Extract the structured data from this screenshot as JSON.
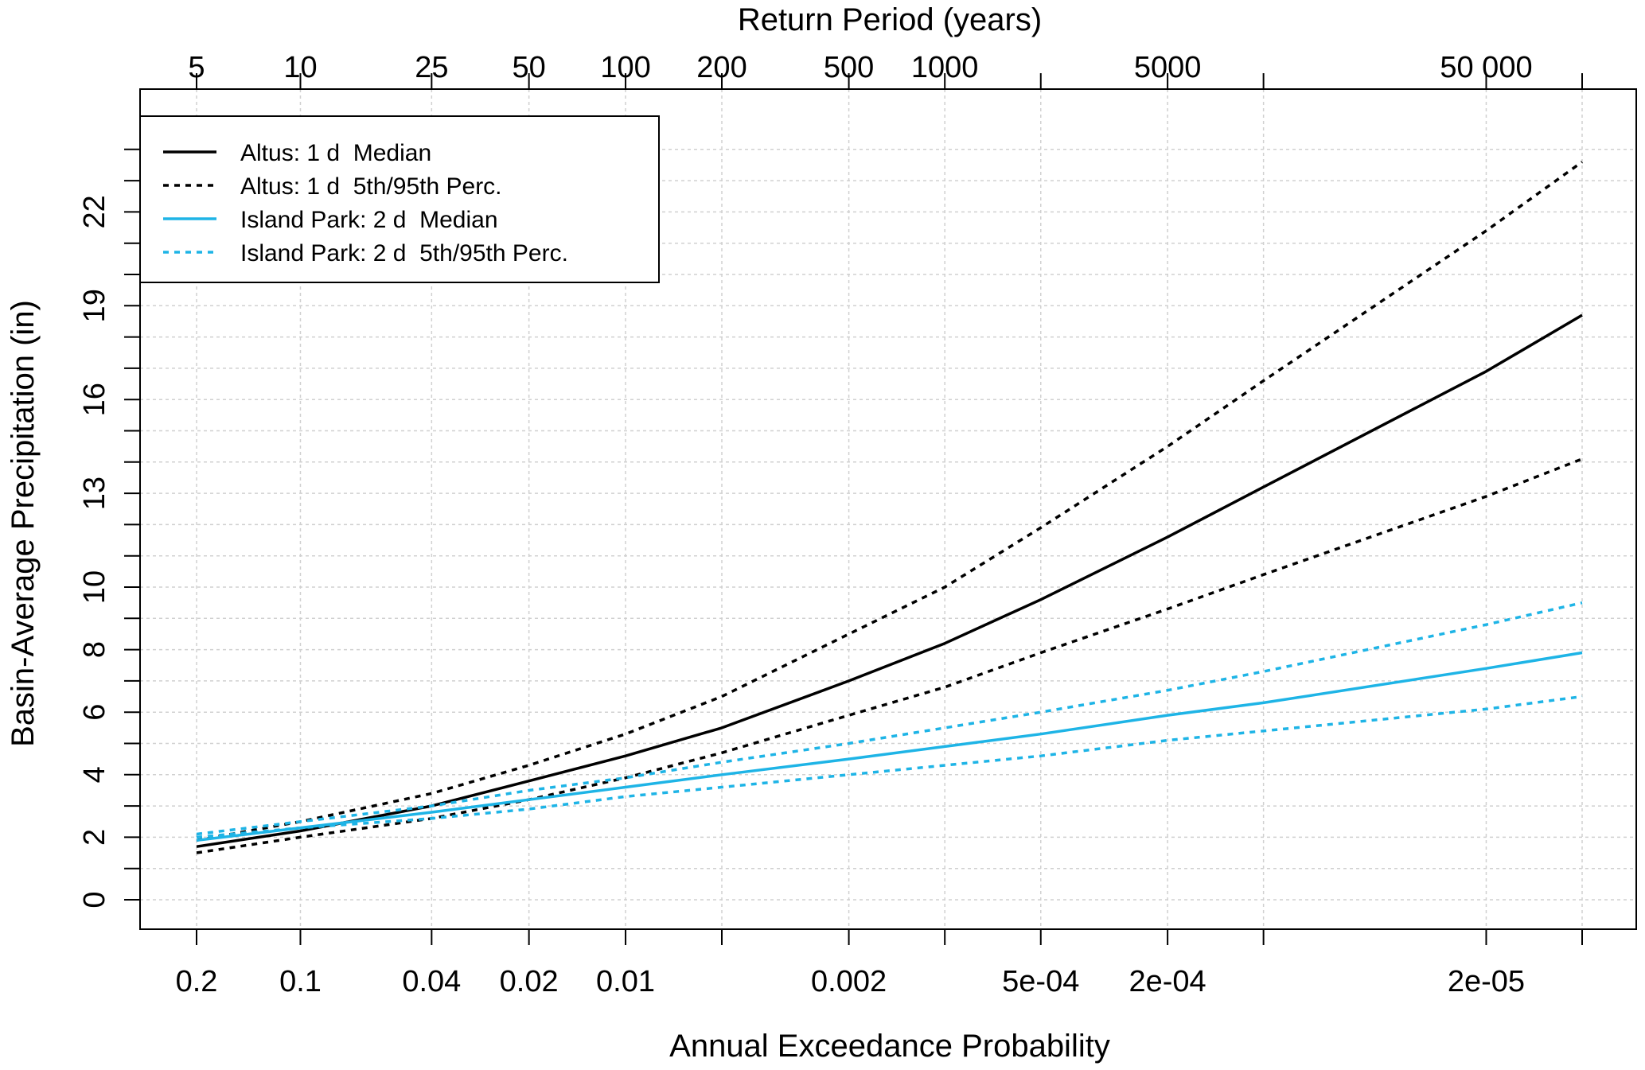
{
  "chart_data": {
    "type": "line",
    "xlabel": "Annual Exceedance Probability",
    "ylabel": "Basin-Average Precipitation (in)",
    "top_axis_label": "Return Period (years)",
    "x_scale": "gumbel-reduced-variate",
    "xlim_aep": [
      0.2,
      1e-05
    ],
    "ylim": [
      -1,
      25
    ],
    "grid": true,
    "legend_position": "top-left",
    "bottom_ticks": [
      {
        "aep": 0.2,
        "label": "0.2"
      },
      {
        "aep": 0.1,
        "label": "0.1"
      },
      {
        "aep": 0.04,
        "label": "0.04"
      },
      {
        "aep": 0.02,
        "label": "0.02"
      },
      {
        "aep": 0.01,
        "label": "0.01"
      },
      {
        "aep": 0.005,
        "label": ""
      },
      {
        "aep": 0.002,
        "label": "0.002"
      },
      {
        "aep": 0.001,
        "label": ""
      },
      {
        "aep": 0.0005,
        "label": "5e-04"
      },
      {
        "aep": 0.0002,
        "label": "2e-04"
      },
      {
        "aep": 0.0001,
        "label": ""
      },
      {
        "aep": 2e-05,
        "label": "2e-05"
      },
      {
        "aep": 1e-05,
        "label": ""
      }
    ],
    "top_ticks": [
      {
        "aep": 0.2,
        "label": "5"
      },
      {
        "aep": 0.1,
        "label": "10"
      },
      {
        "aep": 0.04,
        "label": "25"
      },
      {
        "aep": 0.02,
        "label": "50"
      },
      {
        "aep": 0.01,
        "label": "100"
      },
      {
        "aep": 0.005,
        "label": "200"
      },
      {
        "aep": 0.002,
        "label": "500"
      },
      {
        "aep": 0.001,
        "label": "1000"
      },
      {
        "aep": 0.0005,
        "label": ""
      },
      {
        "aep": 0.0002,
        "label": "5000"
      },
      {
        "aep": 0.0001,
        "label": ""
      },
      {
        "aep": 2e-05,
        "label": "50 000"
      },
      {
        "aep": 1e-05,
        "label": ""
      }
    ],
    "y_ticks": [
      {
        "value": 0,
        "label": "0"
      },
      {
        "value": 2,
        "label": "2"
      },
      {
        "value": 4,
        "label": "4"
      },
      {
        "value": 6,
        "label": "6"
      },
      {
        "value": 8,
        "label": "8"
      },
      {
        "value": 10,
        "label": "10"
      },
      {
        "value": 13,
        "label": "13"
      },
      {
        "value": 16,
        "label": "16"
      },
      {
        "value": 19,
        "label": "19"
      },
      {
        "value": 22,
        "label": "22"
      }
    ],
    "y_minor_ticks": [
      1,
      3,
      5,
      7,
      9,
      11,
      12,
      14,
      15,
      17,
      18,
      20,
      21,
      23,
      24
    ],
    "x": [
      0.2,
      0.1,
      0.04,
      0.02,
      0.01,
      0.005,
      0.002,
      0.001,
      0.0005,
      0.0002,
      0.0001,
      2e-05,
      1e-05
    ],
    "series": [
      {
        "name": "Altus: 1 d  Median",
        "color": "#000000",
        "dash": "solid",
        "values": [
          1.7,
          2.2,
          3.0,
          3.8,
          4.6,
          5.5,
          7.0,
          8.2,
          9.6,
          11.6,
          13.2,
          16.9,
          18.7
        ]
      },
      {
        "name": "Altus: 1 d  5th/95th Perc.",
        "color": "#000000",
        "dash": "dotted",
        "values": [
          1.9,
          2.5,
          3.4,
          4.3,
          5.3,
          6.5,
          8.5,
          10.0,
          11.9,
          14.5,
          16.6,
          21.4,
          23.6
        ]
      },
      {
        "name": "",
        "color": "#000000",
        "dash": "dotted",
        "values": [
          1.5,
          2.0,
          2.6,
          3.2,
          3.9,
          4.7,
          5.9,
          6.8,
          7.9,
          9.3,
          10.4,
          12.9,
          14.1
        ]
      },
      {
        "name": "Island Park: 2 d  Median",
        "color": "#1EB4E6",
        "dash": "solid",
        "values": [
          1.9,
          2.3,
          2.8,
          3.2,
          3.6,
          4.0,
          4.5,
          4.9,
          5.3,
          5.9,
          6.3,
          7.4,
          7.9
        ]
      },
      {
        "name": "Island Park: 2 d  5th/95th Perc.",
        "color": "#1EB4E6",
        "dash": "dotted",
        "values": [
          2.1,
          2.5,
          3.0,
          3.5,
          3.9,
          4.4,
          5.0,
          5.5,
          6.0,
          6.7,
          7.3,
          8.8,
          9.5
        ]
      },
      {
        "name": "",
        "color": "#1EB4E6",
        "dash": "dotted",
        "values": [
          2.0,
          2.3,
          2.6,
          2.9,
          3.3,
          3.6,
          4.0,
          4.3,
          4.6,
          5.1,
          5.4,
          6.1,
          6.5
        ]
      }
    ]
  }
}
